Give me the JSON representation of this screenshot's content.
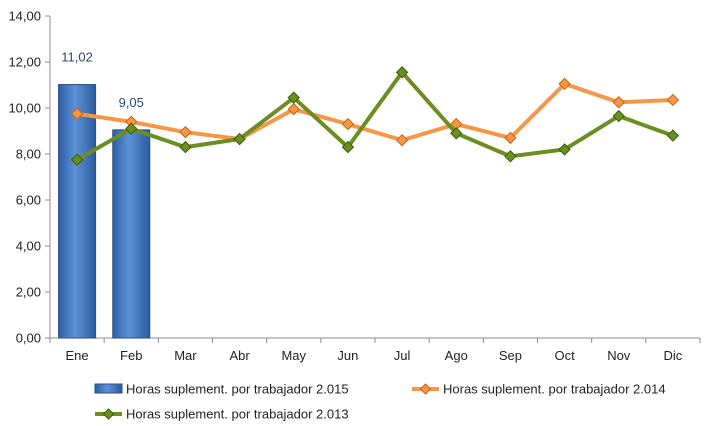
{
  "chart_data": {
    "type": "bar+line",
    "categories": [
      "Ene",
      "Feb",
      "Mar",
      "Abr",
      "May",
      "Jun",
      "Jul",
      "Ago",
      "Sep",
      "Oct",
      "Nov",
      "Dic"
    ],
    "ylim": [
      0,
      14
    ],
    "yticks": [
      "0,00",
      "2,00",
      "4,00",
      "6,00",
      "8,00",
      "10,00",
      "12,00",
      "14,00"
    ],
    "ytick_values": [
      0,
      2,
      4,
      6,
      8,
      10,
      12,
      14
    ],
    "grid": false,
    "legend_position": "bottom",
    "series": [
      {
        "name": "Horas suplement. por trabajador 2.015",
        "kind": "bar",
        "color": "#3f76c0",
        "values": [
          11.02,
          9.05,
          null,
          null,
          null,
          null,
          null,
          null,
          null,
          null,
          null,
          null
        ],
        "data_labels": [
          "11,02",
          "9,05",
          "",
          "",
          "",
          "",
          "",
          "",
          "",
          "",
          "",
          ""
        ]
      },
      {
        "name": "Horas suplement. por trabajador 2.014",
        "kind": "line",
        "color": "#f79646",
        "values": [
          9.75,
          9.4,
          8.95,
          8.65,
          9.95,
          9.3,
          8.6,
          9.3,
          8.7,
          11.05,
          10.25,
          10.35
        ]
      },
      {
        "name": "Horas suplement. por trabajador 2.013",
        "kind": "line",
        "color": "#6b8e23",
        "values": [
          7.75,
          9.1,
          8.3,
          8.65,
          10.45,
          8.3,
          11.55,
          8.9,
          7.9,
          8.2,
          9.65,
          8.8
        ]
      }
    ]
  }
}
